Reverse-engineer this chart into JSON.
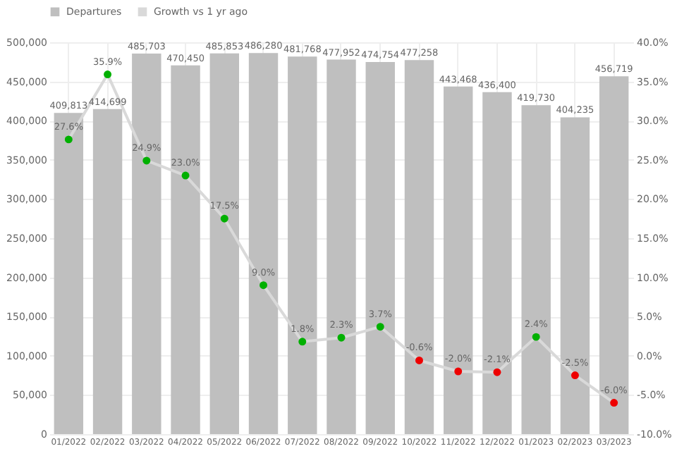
{
  "chart_data": {
    "type": "bar",
    "categories": [
      "01/2022",
      "02/2022",
      "03/2022",
      "04/2022",
      "05/2022",
      "06/2022",
      "07/2022",
      "08/2022",
      "09/2022",
      "10/2022",
      "11/2022",
      "12/2022",
      "01/2023",
      "02/2023",
      "03/2023"
    ],
    "series": [
      {
        "name": "Departures",
        "color": "#bfbfbf",
        "values": [
          409813,
          414699,
          485703,
          470450,
          485853,
          486280,
          481768,
          477952,
          474754,
          477258,
          443468,
          436400,
          419730,
          404235,
          456719
        ],
        "value_labels": [
          "409,813",
          "414,699",
          "485,703",
          "470,450",
          "485,853",
          "486,280",
          "481,768",
          "477,952",
          "474,754",
          "477,258",
          "443,468",
          "436,400",
          "419,730",
          "404,235",
          "456,719"
        ]
      },
      {
        "name": "Growth vs 1 yr ago",
        "type": "line",
        "axis": "y2",
        "color": "#d9d9d9",
        "marker": "circle",
        "colors": [
          "#00b000",
          "#00b000",
          "#00b000",
          "#00b000",
          "#00b000",
          "#00b000",
          "#00b000",
          "#00b000",
          "#00b000",
          "#ee0000",
          "#ee0000",
          "#ee0000",
          "#00b000",
          "#ee0000",
          "#ee0000"
        ],
        "values": [
          27.6,
          35.9,
          24.9,
          23.0,
          17.5,
          9.0,
          1.8,
          2.3,
          3.7,
          -0.6,
          -2.0,
          -2.1,
          2.4,
          -2.5,
          -6.0
        ],
        "value_labels": [
          "27.6%",
          "35.9%",
          "24.9%",
          "23.0%",
          "17.5%",
          "9.0%",
          "1.8%",
          "2.3%",
          "3.7%",
          "-0.6%",
          "-2.0%",
          "-2.1%",
          "2.4%",
          "-2.5%",
          "-6.0%"
        ]
      }
    ],
    "ylim": [
      0,
      500000
    ],
    "yticks": [
      {
        "value": 0,
        "label": "0"
      },
      {
        "value": 50000,
        "label": "50,000"
      },
      {
        "value": 100000,
        "label": "100,000"
      },
      {
        "value": 150000,
        "label": "150,000"
      },
      {
        "value": 200000,
        "label": "200,000"
      },
      {
        "value": 250000,
        "label": "250,000"
      },
      {
        "value": 300000,
        "label": "300,000"
      },
      {
        "value": 350000,
        "label": "350,000"
      },
      {
        "value": 400000,
        "label": "400,000"
      },
      {
        "value": 450000,
        "label": "450,000"
      },
      {
        "value": 500000,
        "label": "500,000"
      }
    ],
    "y2lim": [
      -10,
      40
    ],
    "y2ticks": [
      {
        "value": -10,
        "label": "-10.0%"
      },
      {
        "value": -5,
        "label": "-5.0%"
      },
      {
        "value": 0,
        "label": "0.0%"
      },
      {
        "value": 5,
        "label": "5.0%"
      },
      {
        "value": 10,
        "label": "10.0%"
      },
      {
        "value": 15,
        "label": "15.0%"
      },
      {
        "value": 20,
        "label": "20.0%"
      },
      {
        "value": 25,
        "label": "25.0%"
      },
      {
        "value": 30,
        "label": "30.0%"
      },
      {
        "value": 35,
        "label": "35.0%"
      },
      {
        "value": 40,
        "label": "40.0%"
      }
    ],
    "data_labels": true,
    "grid": true,
    "legend": "top"
  }
}
